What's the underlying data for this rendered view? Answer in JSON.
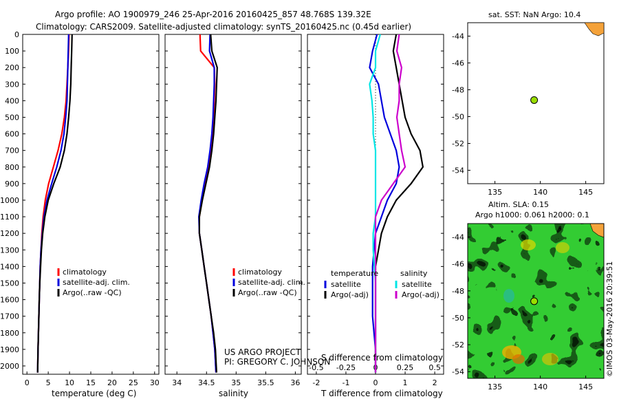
{
  "header": {
    "line1": "Argo profile: AO 1900979_246 25-Apr-2016 20160425_857 48.768S 139.32E",
    "line2": "Climatology: CARS2009. Satellite-adjusted climatology: synTS_20160425.nc (0.45d earlier)"
  },
  "credits": {
    "project": "US ARGO PROJECT",
    "pi": "PI: GREGORY C. JOHNSON",
    "stamp": "©IMOS 03-May-2016 20:39:51"
  },
  "colors": {
    "climatology": "#ff0000",
    "satellite": "#0000dd",
    "argo": "#000000",
    "sal_satellite": "#00e5e5",
    "sal_argo": "#cc00cc",
    "float_marker": "#99dd00"
  },
  "chart_data": [
    {
      "type": "line",
      "id": "temperature",
      "xlabel": "temperature (deg C)",
      "ylabel": "",
      "xlim": [
        -1,
        31
      ],
      "ylim": [
        2050,
        0
      ],
      "xticks": [
        0,
        5,
        10,
        15,
        20,
        25,
        30
      ],
      "yticks": [
        0,
        100,
        200,
        300,
        400,
        500,
        600,
        700,
        800,
        900,
        1000,
        1100,
        1200,
        1300,
        1400,
        1500,
        1600,
        1700,
        1800,
        1900,
        2000
      ],
      "legend": [
        "climatology",
        "satellite-adj. clim.",
        "Argo(..raw -QC)"
      ],
      "series": [
        {
          "name": "climatology",
          "x": [
            9.9,
            9.8,
            9.6,
            9.4,
            9.2,
            8.8,
            8.2,
            7.3,
            6.2,
            5.1,
            4.3,
            3.8,
            3.5,
            3.3,
            3.1,
            3.0,
            2.9,
            2.8,
            2.7,
            2.6,
            2.5
          ],
          "y": [
            0,
            100,
            200,
            300,
            400,
            500,
            600,
            700,
            800,
            900,
            1000,
            1100,
            1200,
            1300,
            1400,
            1500,
            1600,
            1700,
            1800,
            1900,
            2040
          ]
        },
        {
          "name": "satellite-adj. clim.",
          "x": [
            9.8,
            9.7,
            9.6,
            9.5,
            9.4,
            9.1,
            8.7,
            8.0,
            7.0,
            5.8,
            4.7,
            4.0,
            3.6,
            3.3,
            3.1,
            3.0,
            2.9,
            2.8,
            2.7,
            2.6,
            2.5
          ],
          "y": [
            0,
            100,
            200,
            300,
            400,
            500,
            600,
            700,
            800,
            900,
            1000,
            1100,
            1200,
            1300,
            1400,
            1500,
            1600,
            1700,
            1800,
            1900,
            2040
          ]
        },
        {
          "name": "Argo(..raw -QC)",
          "x": [
            10.6,
            10.5,
            10.4,
            10.3,
            10.1,
            9.8,
            9.4,
            8.8,
            7.8,
            6.3,
            5.0,
            4.2,
            3.7,
            3.4,
            3.2,
            3.0,
            2.9,
            2.8,
            2.7,
            2.6,
            2.5
          ],
          "y": [
            0,
            100,
            200,
            300,
            400,
            500,
            600,
            700,
            800,
            900,
            1000,
            1100,
            1200,
            1300,
            1400,
            1500,
            1600,
            1700,
            1800,
            1900,
            2040
          ]
        }
      ]
    },
    {
      "type": "line",
      "id": "salinity",
      "xlabel": "salinity",
      "xlim": [
        33.8,
        36.1
      ],
      "ylim": [
        2050,
        0
      ],
      "xticks": [
        34,
        34.5,
        35,
        35.5,
        36
      ],
      "legend": [
        "climatology",
        "satellite-adj. clim.",
        "Argo(..raw -QC)"
      ],
      "series": [
        {
          "name": "climatology",
          "x": [
            34.39,
            34.4,
            34.63,
            34.64,
            34.63,
            34.62,
            34.6,
            34.57,
            34.53,
            34.47,
            34.42,
            34.38,
            34.38,
            34.42,
            34.46,
            34.5,
            34.54,
            34.58,
            34.61,
            34.64,
            34.66
          ],
          "y": [
            0,
            100,
            200,
            300,
            400,
            500,
            600,
            700,
            800,
            900,
            1000,
            1100,
            1200,
            1300,
            1400,
            1500,
            1600,
            1700,
            1800,
            1900,
            2040
          ]
        },
        {
          "name": "satellite-adj. clim.",
          "x": [
            34.56,
            34.55,
            34.63,
            34.63,
            34.62,
            34.61,
            34.59,
            34.56,
            34.52,
            34.46,
            34.41,
            34.37,
            34.38,
            34.42,
            34.46,
            34.5,
            34.54,
            34.58,
            34.61,
            34.64,
            34.66
          ],
          "y": [
            0,
            100,
            200,
            300,
            400,
            500,
            600,
            700,
            800,
            900,
            1000,
            1100,
            1200,
            1300,
            1400,
            1500,
            1600,
            1700,
            1800,
            1900,
            2040
          ]
        },
        {
          "name": "Argo(..raw -QC)",
          "x": [
            34.57,
            34.59,
            34.68,
            34.67,
            34.66,
            34.64,
            34.62,
            34.59,
            34.55,
            34.49,
            34.43,
            34.38,
            34.38,
            34.42,
            34.46,
            34.5,
            34.54,
            34.58,
            34.62,
            34.65,
            34.67
          ],
          "y": [
            0,
            100,
            200,
            300,
            400,
            500,
            600,
            700,
            800,
            900,
            1000,
            1100,
            1200,
            1300,
            1400,
            1500,
            1600,
            1700,
            1800,
            1900,
            2040
          ]
        }
      ]
    },
    {
      "type": "line",
      "id": "difference",
      "xlabel": "T difference from climatology",
      "xlabel_top": "S difference from climatology",
      "xlim": [
        -2.3,
        2.3
      ],
      "ylim": [
        2050,
        0
      ],
      "xticks": [
        -2,
        -1,
        0,
        1,
        2
      ],
      "xticks_top": [
        "-0.5",
        "-0.25",
        "0",
        "0.25",
        "0.5"
      ],
      "legend_titles": [
        "temperature",
        "salinity"
      ],
      "legend": [
        "satellite",
        "Argo(-adj)",
        "satellite",
        "Argo(-adj)"
      ],
      "series": [
        {
          "name": "temperature satellite",
          "x": [
            0.05,
            -0.1,
            -0.2,
            0.1,
            0.2,
            0.3,
            0.5,
            0.7,
            0.8,
            0.7,
            0.4,
            0.2,
            0.0,
            -0.05,
            -0.1,
            -0.1,
            -0.1,
            -0.1,
            -0.05,
            0.0,
            0.0
          ],
          "y": [
            0,
            100,
            200,
            300,
            400,
            500,
            600,
            700,
            800,
            900,
            1000,
            1100,
            1200,
            1300,
            1400,
            1500,
            1600,
            1700,
            1800,
            1900,
            2040
          ]
        },
        {
          "name": "temperature Argo(-adj)",
          "x": [
            0.7,
            0.6,
            0.7,
            0.8,
            0.9,
            1.0,
            1.2,
            1.5,
            1.6,
            1.2,
            0.7,
            0.4,
            0.2,
            0.1,
            0.0,
            0.0,
            0.0,
            0.0,
            0.0,
            0.0,
            0.0
          ],
          "y": [
            0,
            100,
            200,
            300,
            400,
            500,
            600,
            700,
            800,
            900,
            1000,
            1100,
            1200,
            1300,
            1400,
            1500,
            1600,
            1700,
            1800,
            1900,
            2040
          ]
        },
        {
          "name": "salinity satellite",
          "x": [
            0.04,
            0.0,
            0.0,
            -0.05,
            -0.03,
            -0.02,
            -0.02,
            0.0,
            0.0,
            0.0,
            0.0,
            0.0,
            -0.02,
            -0.02,
            -0.01,
            0.0,
            0.0,
            0.0,
            0.0,
            0.0,
            0.0
          ],
          "y": [
            0,
            100,
            200,
            300,
            400,
            500,
            600,
            700,
            800,
            900,
            1000,
            1100,
            1200,
            1300,
            1400,
            1500,
            1600,
            1700,
            1800,
            1900,
            2040
          ]
        },
        {
          "name": "salinity Argo(-adj)",
          "x": [
            0.2,
            0.18,
            0.22,
            0.2,
            0.2,
            0.18,
            0.2,
            0.22,
            0.25,
            0.15,
            0.05,
            0.0,
            0.0,
            0.0,
            0.0,
            0.0,
            0.0,
            0.0,
            0.0,
            0.0,
            0.0
          ],
          "y": [
            0,
            100,
            200,
            300,
            400,
            500,
            600,
            700,
            800,
            900,
            1000,
            1100,
            1200,
            1300,
            1400,
            1500,
            1600,
            1700,
            1800,
            1900,
            2040
          ]
        }
      ]
    },
    {
      "type": "scatter",
      "id": "sst-map",
      "title": "sat. SST: NaN Argo: 10.4",
      "xlim": [
        132,
        147
      ],
      "ylim": [
        -55,
        -43
      ],
      "xticks": [
        135,
        140,
        145
      ],
      "yticks": [
        -44,
        -46,
        -48,
        -50,
        -52,
        -54
      ],
      "points": [
        {
          "x": 139.32,
          "y": -48.768
        }
      ]
    },
    {
      "type": "heatmap",
      "id": "sla-map",
      "title_line1": "Altim. SLA: 0.15",
      "title_line2": "Argo h1000: 0.061 h2000: 0.1",
      "xlim": [
        132,
        147
      ],
      "ylim": [
        -54.5,
        -43
      ],
      "xticks": [
        135,
        140,
        145
      ],
      "yticks": [
        -44,
        -46,
        -48,
        -50,
        -52,
        -54
      ],
      "points": [
        {
          "x": 139.32,
          "y": -48.768
        }
      ]
    }
  ]
}
